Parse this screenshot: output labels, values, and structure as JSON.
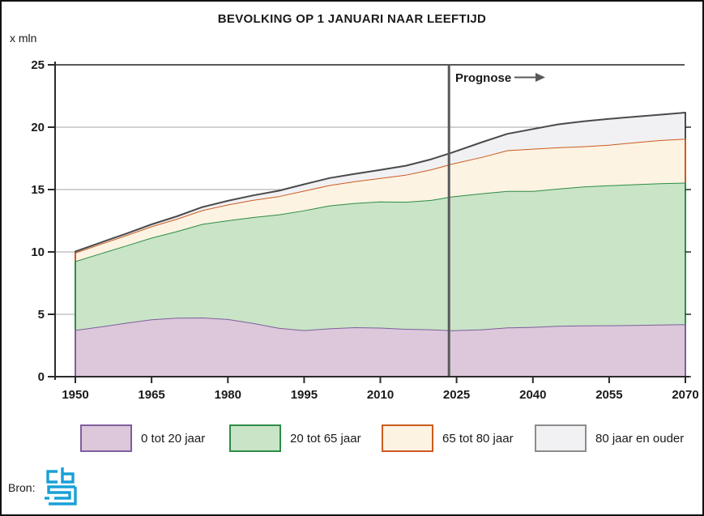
{
  "header": {
    "title": "BEVOLKING OP 1 JANUARI NAAR LEEFTIJD"
  },
  "chart": {
    "unit_label": "x mln",
    "prognose_label": "Prognose"
  },
  "chart_data": {
    "type": "area",
    "stacked": true,
    "title": "BEVOLKING OP 1 JANUARI NAAR LEEFTIJD",
    "xlabel": "",
    "ylabel": "x mln",
    "xlim": [
      1950,
      2070
    ],
    "ylim": [
      0,
      25
    ],
    "x_ticks": [
      1950,
      1965,
      1980,
      1995,
      2010,
      2025,
      2040,
      2055,
      2070
    ],
    "y_ticks": [
      0,
      5,
      10,
      15,
      20,
      25
    ],
    "grid": "horizontal",
    "legend_position": "bottom",
    "forecast_divider_year": 2023.5,
    "forecast_label": "Prognose",
    "years": [
      1950,
      1955,
      1960,
      1965,
      1970,
      1975,
      1980,
      1985,
      1990,
      1995,
      2000,
      2005,
      2010,
      2015,
      2020,
      2024,
      2030,
      2035,
      2040,
      2045,
      2050,
      2055,
      2060,
      2065,
      2070
    ],
    "series": [
      {
        "name": "0 tot 20 jaar",
        "fill": "#dcc8da",
        "line": "#7d5f9d",
        "values": [
          3.74,
          4.02,
          4.32,
          4.6,
          4.73,
          4.74,
          4.62,
          4.3,
          3.91,
          3.73,
          3.87,
          3.96,
          3.93,
          3.83,
          3.79,
          3.72,
          3.79,
          3.94,
          3.99,
          4.07,
          4.11,
          4.12,
          4.14,
          4.17,
          4.2
        ]
      },
      {
        "name": "20 tot 65 jaar",
        "fill": "#c9e4c6",
        "line": "#2d8c47",
        "values": [
          5.52,
          5.87,
          6.19,
          6.54,
          6.93,
          7.51,
          7.91,
          8.49,
          9.09,
          9.6,
          9.86,
          9.96,
          10.11,
          10.19,
          10.37,
          10.72,
          10.91,
          10.95,
          10.89,
          11.0,
          11.13,
          11.22,
          11.28,
          11.33,
          11.35
        ]
      },
      {
        "name": "65 tot 80 jaar",
        "fill": "#fdf3e3",
        "line": "#cc5a1e",
        "values": [
          0.68,
          0.75,
          0.83,
          0.91,
          1.0,
          1.1,
          1.27,
          1.38,
          1.47,
          1.58,
          1.63,
          1.74,
          1.89,
          2.17,
          2.46,
          2.62,
          2.92,
          3.26,
          3.39,
          3.31,
          3.23,
          3.25,
          3.36,
          3.46,
          3.52
        ]
      },
      {
        "name": "80 jaar en ouder",
        "fill": "#f1f1f3",
        "line": "#4a4a4c",
        "values": [
          0.09,
          0.11,
          0.13,
          0.16,
          0.2,
          0.25,
          0.3,
          0.36,
          0.43,
          0.51,
          0.56,
          0.6,
          0.65,
          0.72,
          0.81,
          0.89,
          1.18,
          1.32,
          1.58,
          1.85,
          2.0,
          2.07,
          2.06,
          2.04,
          2.1
        ]
      }
    ]
  },
  "legend": {
    "items": [
      {
        "label": "0 tot 20 jaar",
        "fill": "#dcc8da",
        "border": "#7d5f9d"
      },
      {
        "label": "20 tot 65 jaar",
        "fill": "#c9e4c6",
        "border": "#2d8c47"
      },
      {
        "label": "65 tot 80 jaar",
        "fill": "#fdf3e3",
        "border": "#cc5a1e"
      },
      {
        "label": "80 jaar en ouder",
        "fill": "#f1f1f3",
        "border": "#8c8c8e"
      }
    ]
  },
  "footer": {
    "source_label": "Bron:",
    "logo": "cbs",
    "logo_color": "#18a0d6"
  },
  "style_colors": {
    "grid": "#a6a6a6",
    "axis": "#2b2b2b",
    "top_line": "#58595b",
    "tick_text": "#1a1a1a",
    "prognose_line": "#58595b"
  }
}
